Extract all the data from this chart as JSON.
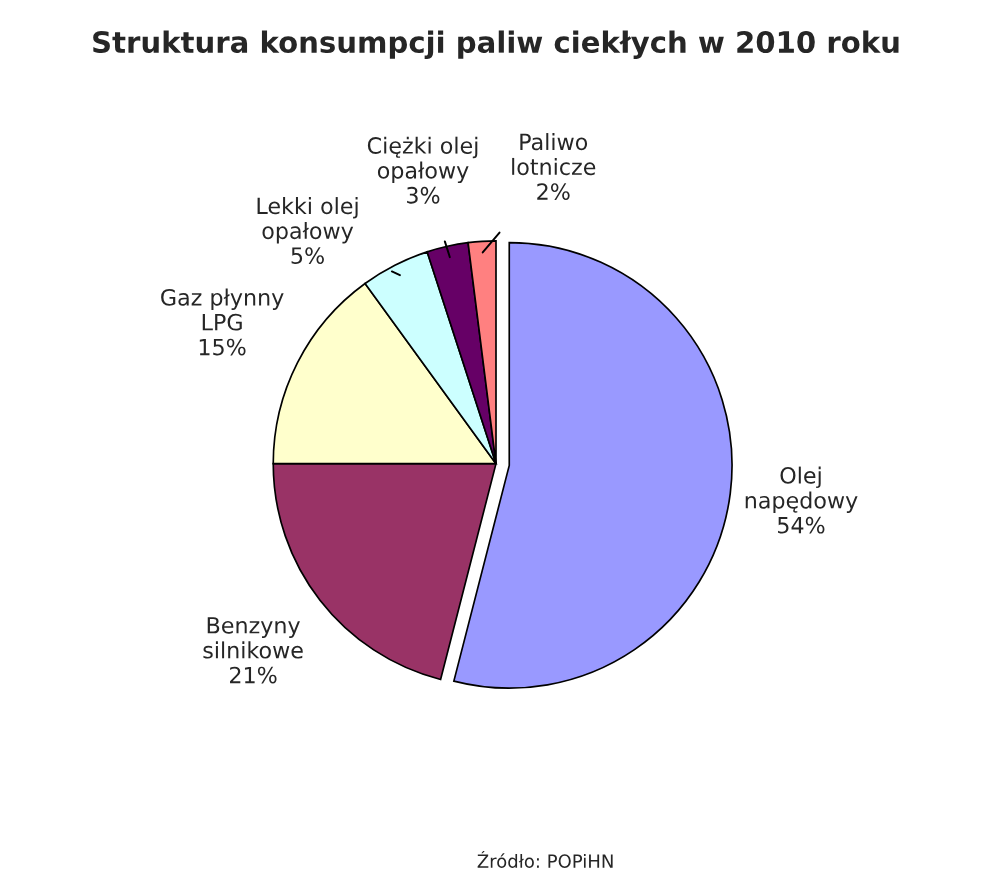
{
  "chart_data": {
    "type": "pie",
    "title": "Struktura konsumpcji paliw ciekłych w 2010 roku",
    "categories": [
      "Olej\nnapędowy",
      "Benzyny\nsilnikowe",
      "Gaz płynny\nLPG",
      "Lekki olej\nopałowy",
      "Ciężki olej\nopałowy",
      "Paliwo\nlotnicze"
    ],
    "values": [
      54,
      21,
      15,
      5,
      3,
      2
    ],
    "value_labels": [
      "54%",
      "21%",
      "15%",
      "5%",
      "3%",
      "2%"
    ],
    "colors": [
      "#9999ff",
      "#993366",
      "#ffffcc",
      "#ccffff",
      "#660066",
      "#ff8080"
    ],
    "annotations": [
      "Źródło: POPiHN"
    ]
  }
}
